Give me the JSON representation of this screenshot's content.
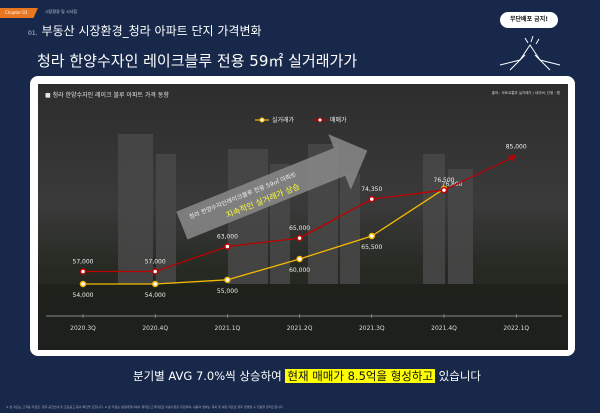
{
  "header": {
    "chapter": "Chapter 03",
    "chapter_sub": "시장환경 및 시사점",
    "section_num": "01.",
    "section_title": "부동산 시장환경_청라 아파트 단지 가격변화",
    "subtitle": "청라 한양수자인 레이크블루 전용 59㎡ 실거래가가",
    "badge": "무단배포 금지!"
  },
  "chart_data": {
    "type": "line",
    "title": "■ 청라 한양수자인 레이크 블루 아파트 가격 동향",
    "source": "출처 : 국토교통부 실거래가 / 네이버, 단위 : 원",
    "legend_position": "top-center",
    "categories": [
      "2020.3Q",
      "2020.4Q",
      "2021.1Q",
      "2021.2Q",
      "2021.3Q",
      "2021.4Q",
      "2022.1Q"
    ],
    "series": [
      {
        "name": "실거래가",
        "color": "#f5b800",
        "values": [
          54000,
          54000,
          55000,
          60000,
          65500,
          76800,
          null
        ],
        "labels": [
          "54,000",
          "54,000",
          "55,000",
          "60,000",
          "65,500",
          "76,800",
          null
        ]
      },
      {
        "name": "매매가",
        "color": "#c00000",
        "values": [
          57000,
          57000,
          63000,
          65000,
          74350,
          76500,
          85000
        ],
        "labels": [
          "57,000",
          "57,000",
          "63,000",
          "65,000",
          "74,350",
          "76,500",
          "85,000"
        ]
      }
    ],
    "annotation": {
      "line1": "청라 한양수자인레이크블루 전용 59㎡ 아파트",
      "line2": "지속적인 실거래가 상승"
    }
  },
  "summary": {
    "pre": "분기별 AVG 7.0%씩 상승하여 ",
    "highlight": "현재 매매가 8.5억을 형성하고",
    "post": " 있습니다"
  },
  "footnote": "※ 본 자료는 고객용 자료로, 향후 공급안내 및 모집공고 등의 확인을 요합니다. ※ 본 자료는 분양대행사에서 제작된 고객자료로 이용사항은 무관하며, 내용의 일부는 계획 및 예정 자료로 향후 변경될 수 있음을 알려드립니다."
}
